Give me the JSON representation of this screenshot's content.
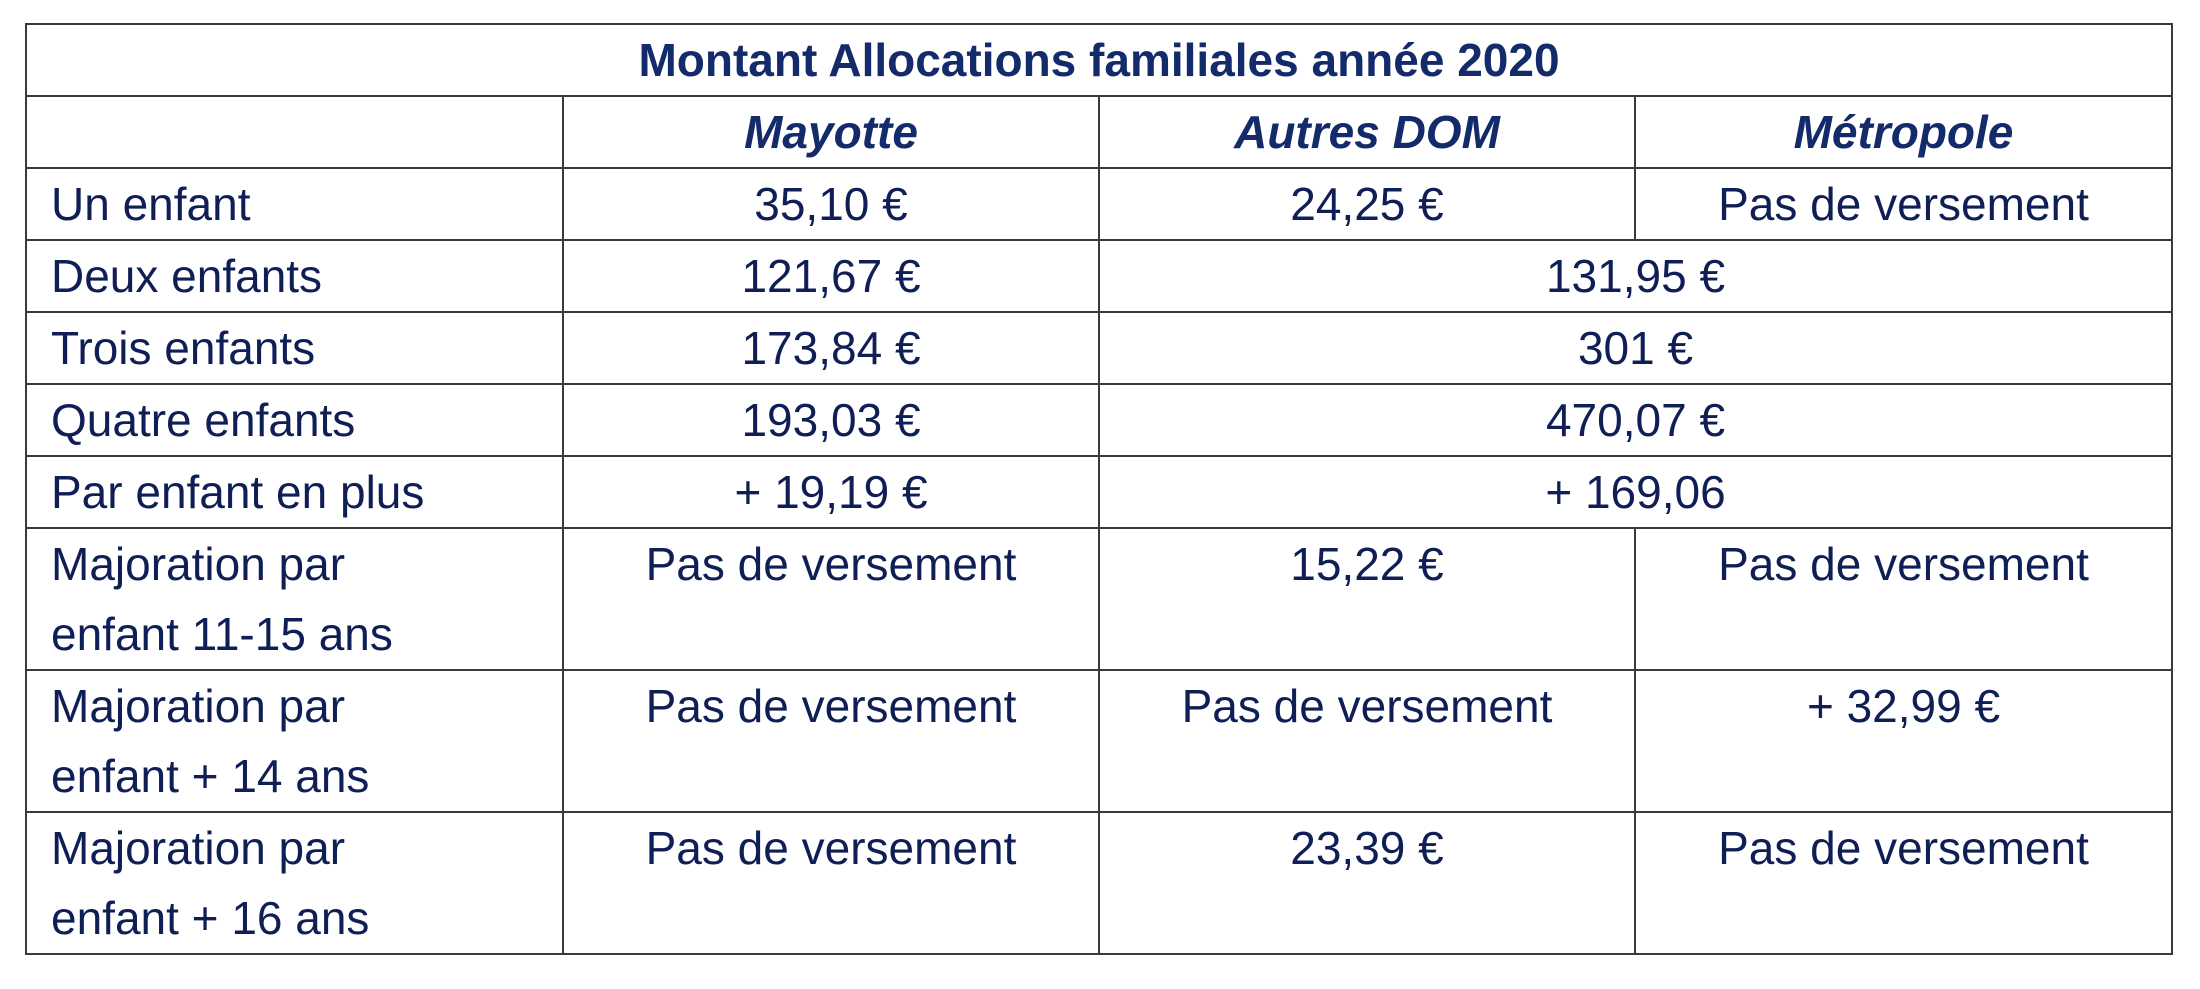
{
  "table": {
    "title": "Montant Allocations familiales année 2020",
    "headers": [
      "",
      "Mayotte",
      "Autres DOM",
      "Métropole"
    ],
    "rows": [
      {
        "label": "Un enfant",
        "mayotte": "35,10 €",
        "autres_dom": "24,25 €",
        "metropole": "Pas de versement",
        "merged": ""
      },
      {
        "label": "Deux enfants",
        "mayotte": "121,67 €",
        "merged": "131,95 €"
      },
      {
        "label": "Trois enfants",
        "mayotte": "173,84 €",
        "merged": "301 €"
      },
      {
        "label": "Quatre enfants",
        "mayotte": "193,03 €",
        "merged": "470,07 €"
      },
      {
        "label": "Par enfant en plus",
        "mayotte": "+ 19,19 €",
        "merged": "+ 169,06"
      },
      {
        "label_line1": "Majoration par",
        "label_line2": "enfant 11-15 ans",
        "mayotte": "Pas de versement",
        "autres_dom": "15,22 €",
        "metropole": "Pas de versement"
      },
      {
        "label_line1": "Majoration par",
        "label_line2": "enfant + 14 ans",
        "mayotte": "Pas de versement",
        "autres_dom": "Pas de versement",
        "metropole": "+ 32,99 €"
      },
      {
        "label_line1": "Majoration par",
        "label_line2": "enfant + 16 ans",
        "mayotte": "Pas de versement",
        "autres_dom": "23,39 €",
        "metropole": "Pas de versement"
      }
    ]
  }
}
